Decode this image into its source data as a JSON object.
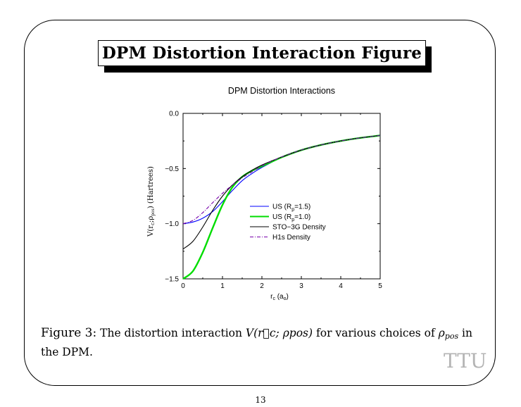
{
  "slide": {
    "title": "DPM Distortion Interaction Figure",
    "page_number": "13",
    "brand": "TTU"
  },
  "caption": {
    "label": "Figure 3:",
    "text_before": "The distortion interaction",
    "math_expr": "V(r⃗c; ρpos)",
    "text_middle": "for various choices of",
    "rho_symbol": "ρ",
    "rho_sub": "pos",
    "text_after": "in the DPM."
  },
  "chart_data": {
    "type": "line",
    "title": "DPM Distortion Interactions",
    "xlabel": "r_c (a_o)",
    "ylabel": "V(r_c;ρ_pos) (Hartrees)",
    "xlim": [
      0,
      5
    ],
    "ylim": [
      -1.5,
      0.0
    ],
    "x_ticks": [
      "0",
      "1",
      "2",
      "3",
      "4",
      "5"
    ],
    "y_ticks": [
      "0.0",
      "−0.5",
      "−1.0",
      "−1.5"
    ],
    "grid": false,
    "legend_position": "center",
    "series": [
      {
        "name": "US (R_p=1.5)",
        "color": "#0000ff",
        "dash": "solid",
        "x": [
          0,
          0.25,
          0.5,
          0.75,
          1.0,
          1.25,
          1.5,
          1.75,
          2.0,
          2.5,
          3.0,
          3.5,
          4.0,
          4.5,
          5.0
        ],
        "y": [
          -1.0,
          -0.985,
          -0.95,
          -0.89,
          -0.8,
          -0.7,
          -0.61,
          -0.545,
          -0.49,
          -0.4,
          -0.333,
          -0.286,
          -0.25,
          -0.222,
          -0.2
        ]
      },
      {
        "name": "US (R_p=1.0)",
        "color": "#00dd00",
        "dash": "solid",
        "x": [
          0,
          0.25,
          0.5,
          0.75,
          1.0,
          1.25,
          1.5,
          1.75,
          2.0,
          2.5,
          3.0,
          3.5,
          4.0,
          4.5,
          5.0
        ],
        "y": [
          -1.5,
          -1.43,
          -1.26,
          -1.04,
          -0.83,
          -0.67,
          -0.575,
          -0.52,
          -0.48,
          -0.398,
          -0.333,
          -0.286,
          -0.25,
          -0.222,
          -0.2
        ]
      },
      {
        "name": "STO−3G  Density",
        "color": "#000000",
        "dash": "solid",
        "x": [
          0,
          0.25,
          0.5,
          0.75,
          1.0,
          1.25,
          1.5,
          1.75,
          2.0,
          2.5,
          3.0,
          3.5,
          4.0,
          4.5,
          5.0
        ],
        "y": [
          -1.23,
          -1.16,
          -1.03,
          -0.88,
          -0.75,
          -0.65,
          -0.575,
          -0.515,
          -0.468,
          -0.396,
          -0.333,
          -0.286,
          -0.25,
          -0.222,
          -0.2
        ]
      },
      {
        "name": "H1s Density",
        "color": "#7700aa",
        "dash": "dashdot",
        "x": [
          0,
          0.25,
          0.5,
          0.75,
          1.0,
          1.25,
          1.5,
          1.75,
          2.0,
          2.5,
          3.0,
          3.5,
          4.0,
          4.5,
          5.0
        ],
        "y": [
          -1.0,
          -0.97,
          -0.9,
          -0.81,
          -0.725,
          -0.65,
          -0.585,
          -0.53,
          -0.475,
          -0.395,
          -0.332,
          -0.286,
          -0.25,
          -0.222,
          -0.2
        ]
      }
    ]
  }
}
